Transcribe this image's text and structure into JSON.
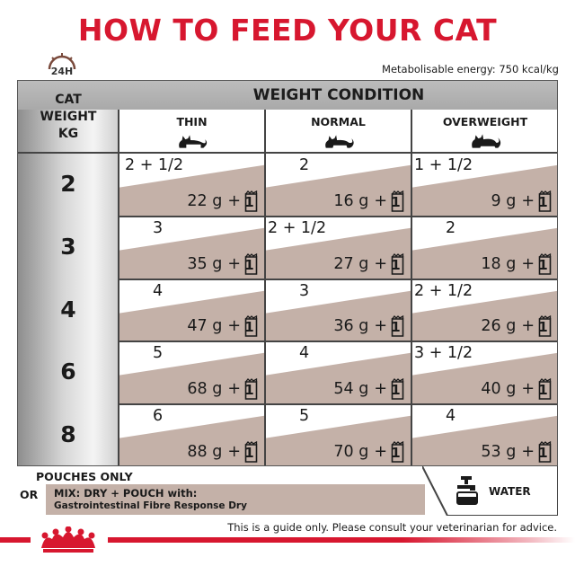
{
  "title": "HOW TO FEED YOUR CAT",
  "clock_label": "24H",
  "energy_note": "Metabolisable energy: 750 kcal/kg",
  "table": {
    "weight_header": [
      "CAT",
      "WEIGHT",
      "KG"
    ],
    "condition_header": "WEIGHT CONDITION",
    "columns": [
      "THIN",
      "NORMAL",
      "OVERWEIGHT"
    ],
    "rows": [
      {
        "weight": "2",
        "cells": [
          {
            "dry": "2 + 1/2",
            "wet": "22 g",
            "pouch": "1"
          },
          {
            "dry": "2",
            "wet": "16 g",
            "pouch": "1"
          },
          {
            "dry": "1 + 1/2",
            "wet": "9 g",
            "pouch": "1"
          }
        ]
      },
      {
        "weight": "3",
        "cells": [
          {
            "dry": "3",
            "wet": "35 g",
            "pouch": "1"
          },
          {
            "dry": "2 + 1/2",
            "wet": "27 g",
            "pouch": "1"
          },
          {
            "dry": "2",
            "wet": "18 g",
            "pouch": "1"
          }
        ]
      },
      {
        "weight": "4",
        "cells": [
          {
            "dry": "4",
            "wet": "47 g",
            "pouch": "1"
          },
          {
            "dry": "3",
            "wet": "36 g",
            "pouch": "1"
          },
          {
            "dry": "2 + 1/2",
            "wet": "26 g",
            "pouch": "1"
          }
        ]
      },
      {
        "weight": "6",
        "cells": [
          {
            "dry": "5",
            "wet": "68 g",
            "pouch": "1"
          },
          {
            "dry": "4",
            "wet": "54 g",
            "pouch": "1"
          },
          {
            "dry": "3 + 1/2",
            "wet": "40 g",
            "pouch": "1"
          }
        ]
      },
      {
        "weight": "8",
        "cells": [
          {
            "dry": "6",
            "wet": "88 g",
            "pouch": "1"
          },
          {
            "dry": "5",
            "wet": "70 g",
            "pouch": "1"
          },
          {
            "dry": "4",
            "wet": "53 g",
            "pouch": "1"
          }
        ]
      }
    ]
  },
  "footer": {
    "pouches_only": "POUCHES ONLY",
    "or": "OR",
    "mix_title": "MIX: DRY + POUCH with:",
    "mix_product": "Gastrointestinal Fibre Response Dry",
    "water": "WATER"
  },
  "disclaimer": "This is a guide only. Please consult your veterinarian for advice.",
  "icons": [
    "clock-24h-icon",
    "cat-thin-icon",
    "cat-normal-icon",
    "cat-overweight-icon",
    "pouch-icon",
    "water-tap-icon",
    "royal-canin-crown-icon"
  ],
  "colors": {
    "brand_red": "#d7172f",
    "band_brown": "#c4b1a8",
    "header_gray": "#b3b3b3"
  }
}
